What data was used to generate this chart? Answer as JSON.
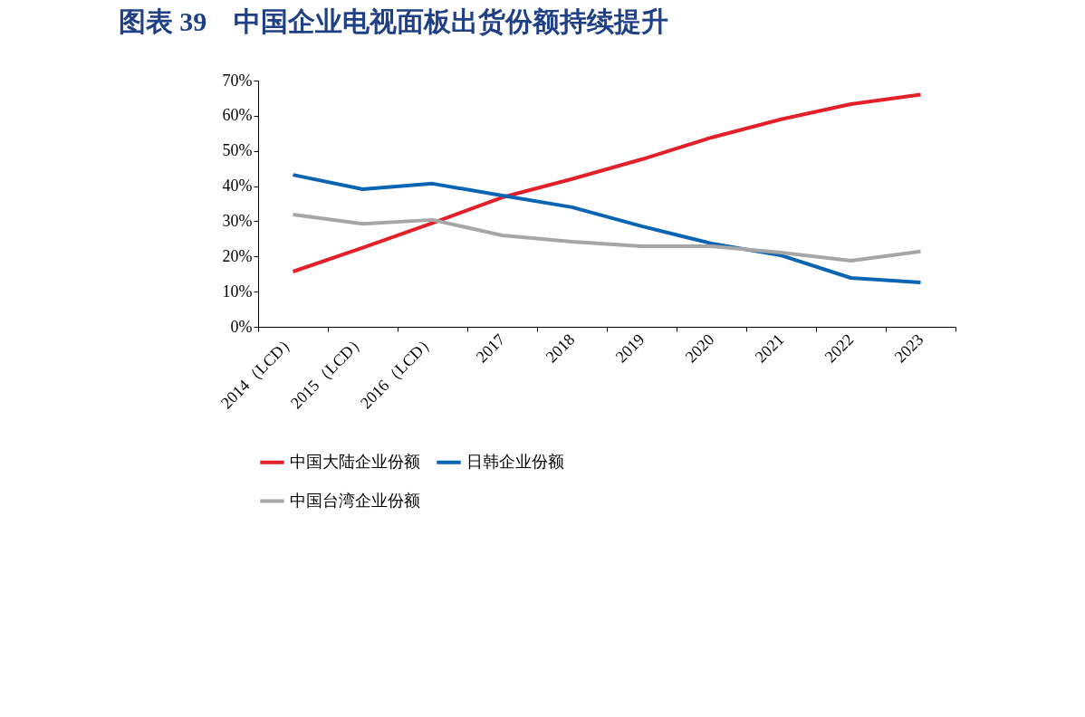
{
  "chart_data": {
    "type": "line",
    "title": "图表 39　中国企业电视面板出货份额持续提升",
    "categories": [
      "2014（LCD）",
      "2015（LCD）",
      "2016（LCD）",
      "2017",
      "2018",
      "2019",
      "2020",
      "2021",
      "2022",
      "2023"
    ],
    "series": [
      {
        "name": "中国大陆企业份额",
        "color": "#e3202a",
        "values": [
          15.7,
          22.5,
          29.5,
          36.8,
          42.0,
          47.6,
          53.8,
          59.0,
          63.3,
          66.0
        ]
      },
      {
        "name": "日韩企业份额",
        "color": "#0a64b4",
        "values": [
          43.2,
          39.1,
          40.7,
          37.3,
          34.0,
          28.6,
          23.7,
          20.3,
          13.9,
          12.6
        ]
      },
      {
        "name": "中国台湾企业份额",
        "color": "#a6a6a6",
        "values": [
          31.9,
          29.3,
          30.4,
          26.0,
          24.2,
          22.9,
          22.9,
          21.1,
          18.8,
          21.4
        ]
      }
    ],
    "ylim": [
      0,
      70
    ],
    "yticks": [
      {
        "value": 0,
        "label": "0%"
      },
      {
        "value": 10,
        "label": "10%"
      },
      {
        "value": 20,
        "label": "20%"
      },
      {
        "value": 30,
        "label": "30%"
      },
      {
        "value": 40,
        "label": "40%"
      },
      {
        "value": 50,
        "label": "50%"
      },
      {
        "value": 60,
        "label": "60%"
      },
      {
        "value": 70,
        "label": "70%"
      }
    ],
    "grid": false,
    "legend": "bottom",
    "marker": "none",
    "line_style": "solid"
  }
}
